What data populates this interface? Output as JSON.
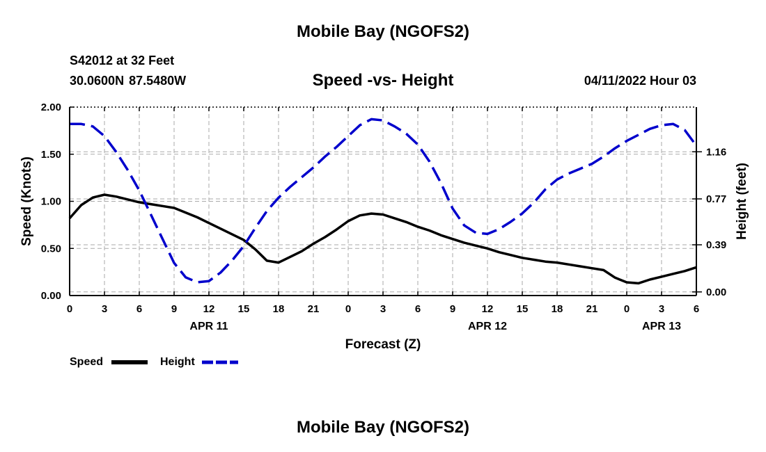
{
  "header": {
    "title": "Mobile Bay (NGOFS2)",
    "station": "S42012 at 32 Feet",
    "coordinates": "30.0600N  87.5480W",
    "chart_title": "Speed -vs- Height",
    "forecast_time": "04/11/2022 Hour 03"
  },
  "footer": {
    "title": "Mobile Bay (NGOFS2)"
  },
  "chart_data": {
    "type": "line",
    "title": "Speed -vs- Height",
    "xlabel": "Forecast (Z)",
    "ylabel": "Speed (Knots)",
    "y2label": "Height (feet)",
    "xlim": [
      0,
      54
    ],
    "ylim": [
      0,
      2.0
    ],
    "y2lim": [
      -0.03,
      1.53
    ],
    "x_ticks": [
      0,
      3,
      6,
      9,
      12,
      15,
      18,
      21,
      24,
      27,
      30,
      33,
      36,
      39,
      42,
      45,
      48,
      51,
      54
    ],
    "x_tick_labels": [
      "0",
      "3",
      "6",
      "9",
      "12",
      "15",
      "18",
      "21",
      "0",
      "3",
      "6",
      "9",
      "12",
      "15",
      "18",
      "21",
      "0",
      "3",
      "6"
    ],
    "date_labels": [
      {
        "x": 12,
        "label": "APR 11"
      },
      {
        "x": 36,
        "label": "APR 12"
      },
      {
        "x": 51,
        "label": "APR 13"
      }
    ],
    "y_ticks": [
      0.0,
      0.5,
      1.0,
      1.5,
      2.0
    ],
    "y_tick_labels": [
      "0.00",
      "0.50",
      "1.00",
      "1.50",
      "2.00"
    ],
    "y2_ticks": [
      0.0,
      0.39,
      0.77,
      1.16
    ],
    "y2_tick_labels": [
      "0.00",
      "0.39",
      "0.77",
      "1.16"
    ],
    "grid": true,
    "legend": "bottom-left",
    "series": [
      {
        "name": "Speed",
        "axis": "left",
        "color": "#000000",
        "dash": "solid",
        "x": [
          0,
          1,
          2,
          3,
          4,
          5,
          6,
          7,
          8,
          9,
          10,
          11,
          12,
          13,
          14,
          15,
          16,
          17,
          18,
          19,
          20,
          21,
          22,
          23,
          24,
          25,
          26,
          27,
          28,
          29,
          30,
          31,
          32,
          33,
          34,
          35,
          36,
          37,
          38,
          39,
          40,
          41,
          42,
          43,
          44,
          45,
          46,
          47,
          48,
          49,
          50,
          51,
          52,
          53,
          54
        ],
        "values": [
          0.82,
          0.96,
          1.04,
          1.07,
          1.05,
          1.02,
          0.99,
          0.97,
          0.95,
          0.93,
          0.88,
          0.83,
          0.77,
          0.71,
          0.65,
          0.59,
          0.49,
          0.37,
          0.35,
          0.41,
          0.47,
          0.55,
          0.62,
          0.7,
          0.79,
          0.85,
          0.87,
          0.86,
          0.82,
          0.78,
          0.73,
          0.69,
          0.64,
          0.6,
          0.56,
          0.53,
          0.5,
          0.46,
          0.43,
          0.4,
          0.38,
          0.36,
          0.35,
          0.33,
          0.31,
          0.29,
          0.27,
          0.19,
          0.14,
          0.13,
          0.17,
          0.2,
          0.23,
          0.26,
          0.3
        ]
      },
      {
        "name": "Height",
        "axis": "right",
        "color": "#0000cc",
        "dash": "dashed",
        "x": [
          0,
          1,
          2,
          3,
          4,
          5,
          6,
          7,
          8,
          9,
          10,
          11,
          12,
          13,
          14,
          15,
          16,
          17,
          18,
          19,
          20,
          21,
          22,
          23,
          24,
          25,
          26,
          27,
          28,
          29,
          30,
          31,
          32,
          33,
          34,
          35,
          36,
          37,
          38,
          39,
          40,
          41,
          42,
          43,
          44,
          45,
          46,
          47,
          48,
          49,
          50,
          51,
          52,
          53,
          54
        ],
        "values": [
          1.39,
          1.39,
          1.37,
          1.29,
          1.16,
          1.01,
          0.84,
          0.64,
          0.44,
          0.24,
          0.12,
          0.08,
          0.09,
          0.16,
          0.26,
          0.38,
          0.53,
          0.67,
          0.78,
          0.87,
          0.95,
          1.03,
          1.12,
          1.2,
          1.29,
          1.38,
          1.43,
          1.42,
          1.37,
          1.31,
          1.22,
          1.08,
          0.9,
          0.69,
          0.55,
          0.49,
          0.48,
          0.52,
          0.58,
          0.65,
          0.74,
          0.85,
          0.93,
          0.98,
          1.02,
          1.06,
          1.12,
          1.19,
          1.25,
          1.3,
          1.35,
          1.38,
          1.39,
          1.34,
          1.21
        ]
      }
    ]
  }
}
